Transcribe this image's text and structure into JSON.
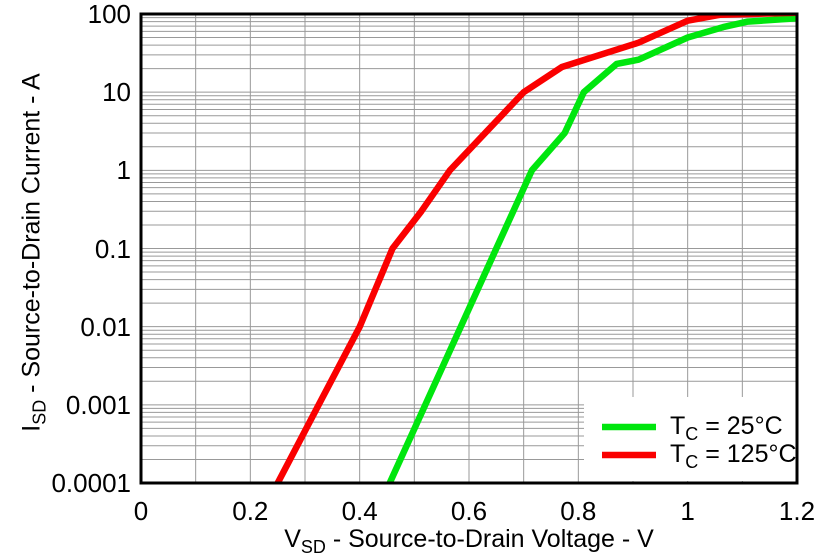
{
  "chart_data": {
    "type": "line",
    "title": "",
    "xlabel": "V_{SD} - Source-to-Drain Voltage - V",
    "ylabel": "I_{SD} - Source-to-Drain Current - A",
    "x_axis": {
      "min": 0,
      "max": 1.2,
      "scale": "linear",
      "grid_step": 0.1,
      "ticks": [
        0,
        0.2,
        0.4,
        0.6,
        0.8,
        1,
        1.2
      ],
      "tick_labels": [
        "0",
        "0.2",
        "0.4",
        "0.6",
        "0.8",
        "1",
        "1.2"
      ]
    },
    "y_axis": {
      "min": 0.0001,
      "max": 100,
      "scale": "log",
      "ticks": [
        100,
        10,
        1,
        0.1,
        0.01,
        0.001,
        0.0001
      ],
      "tick_labels": [
        "100",
        "10",
        "1",
        "0.1",
        "0.01",
        "0.001",
        "0.0001"
      ]
    },
    "grid": "on",
    "legend_position": "bottom-right",
    "series": [
      {
        "name": "T_{C} = 25°C",
        "color": "#00e60e",
        "points": [
          [
            0.455,
            0.0001
          ],
          [
            0.52,
            0.001
          ],
          [
            0.585,
            0.01
          ],
          [
            0.65,
            0.1
          ],
          [
            0.715,
            1
          ],
          [
            0.775,
            3
          ],
          [
            0.81,
            10
          ],
          [
            0.87,
            23
          ],
          [
            0.91,
            26
          ],
          [
            1.0,
            50
          ],
          [
            1.065,
            68
          ],
          [
            1.11,
            80
          ],
          [
            1.2,
            88
          ]
        ]
      },
      {
        "name": "T_{C} = 125°C",
        "color": "#fa0000",
        "points": [
          [
            0.25,
            0.0001
          ],
          [
            0.325,
            0.001
          ],
          [
            0.4,
            0.01
          ],
          [
            0.46,
            0.1
          ],
          [
            0.513,
            0.3
          ],
          [
            0.565,
            1
          ],
          [
            0.7,
            10
          ],
          [
            0.77,
            21
          ],
          [
            0.91,
            43
          ],
          [
            1.0,
            82
          ],
          [
            1.06,
            98
          ],
          [
            1.2,
            104
          ]
        ]
      }
    ]
  },
  "colors": {
    "background": "#ffffff",
    "grid": "#999999",
    "axis_border": "#000000",
    "text": "#000000",
    "legend_background": "#ffffff"
  }
}
